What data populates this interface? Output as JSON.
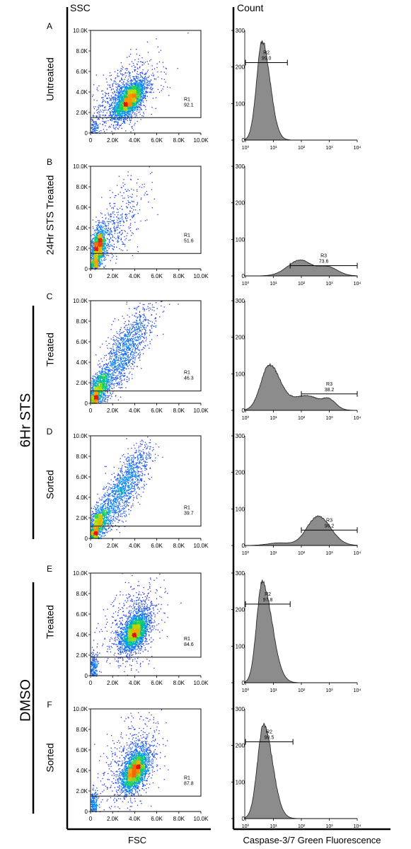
{
  "figure": {
    "y_header_left": "SSC",
    "y_header_right": "Count",
    "x_label_left": "FSC",
    "x_label_right": "Caspase-3/7 Green Fluorescence",
    "groups": [
      {
        "label": "6Hr STS",
        "rows": [
          2,
          3
        ]
      },
      {
        "label": "DMSO",
        "rows": [
          4,
          5
        ]
      }
    ]
  },
  "chart_data": [
    {
      "type": "scatter",
      "panel": "A",
      "row_label": "Untreated",
      "xlim": [
        0,
        10000
      ],
      "ylim": [
        0,
        10000
      ],
      "x_ticks": [
        "0",
        "2.0K",
        "4.0K",
        "6.0K",
        "8.0K",
        "10.0K"
      ],
      "y_ticks": [
        "0",
        "2.0K",
        "4.0K",
        "6.0K",
        "8.0K",
        "10.0K"
      ],
      "gate": {
        "name": "R1",
        "value": "92.1",
        "x_range": [
          0,
          10000
        ],
        "y_range": [
          1500,
          10000
        ]
      },
      "clusters": [
        {
          "cx": 3500,
          "cy": 3300,
          "sx": 700,
          "sy": 900,
          "rho": 0.6,
          "n": 2200
        },
        {
          "cx": 3000,
          "cy": 3500,
          "sx": 1600,
          "sy": 1700,
          "rho": 0.5,
          "n": 900
        },
        {
          "cx": 250,
          "cy": 400,
          "sx": 250,
          "sy": 500,
          "rho": 0.1,
          "n": 120
        }
      ]
    },
    {
      "type": "histogram",
      "panel": "A",
      "x_ticks": [
        "10⁰",
        "10¹",
        "10²",
        "10³",
        "10⁴"
      ],
      "ylim": [
        0,
        300
      ],
      "y_ticks": [
        "0",
        "100",
        "200",
        "300"
      ],
      "gate": {
        "name": "R2",
        "value": "99.0",
        "x_range": [
          0.0,
          1.5
        ],
        "y": 212
      },
      "peaks": [
        {
          "mu": 0.6,
          "sl": 0.2,
          "sr": 0.28,
          "h": 270
        }
      ]
    },
    {
      "type": "scatter",
      "panel": "B",
      "row_label": "24Hr STS Treated",
      "xlim": [
        0,
        10000
      ],
      "ylim": [
        0,
        10000
      ],
      "x_ticks": [
        "0",
        "2.0K",
        "4.0K",
        "6.0K",
        "8.0K",
        "10.0K"
      ],
      "y_ticks": [
        "0",
        "2.0K",
        "4.0K",
        "6.0K",
        "8.0K",
        "10.0K"
      ],
      "gate": {
        "name": "R1",
        "value": "51.6",
        "x_range": [
          0,
          10000
        ],
        "y_range": [
          1500,
          10000
        ]
      },
      "clusters": [
        {
          "cx": 700,
          "cy": 2300,
          "sx": 350,
          "sy": 900,
          "rho": 0.3,
          "n": 1100
        },
        {
          "cx": 2200,
          "cy": 4000,
          "sx": 1400,
          "sy": 2400,
          "rho": 0.7,
          "n": 500
        },
        {
          "cx": 300,
          "cy": 500,
          "sx": 250,
          "sy": 400,
          "rho": 0.1,
          "n": 300
        }
      ]
    },
    {
      "type": "histogram",
      "panel": "B",
      "x_ticks": [
        "10⁰",
        "10¹",
        "10²",
        "10³",
        "10⁴"
      ],
      "ylim": [
        0,
        300
      ],
      "y_ticks": [
        "0",
        "100",
        "200",
        "300"
      ],
      "gate": {
        "name": "R3",
        "value": "73.6",
        "x_range": [
          1.6,
          4.0
        ],
        "y": 28
      },
      "peaks": [
        {
          "mu": 1.95,
          "sl": 0.45,
          "sr": 0.35,
          "h": 42
        },
        {
          "mu": 2.9,
          "sl": 0.4,
          "sr": 0.38,
          "h": 26
        }
      ]
    },
    {
      "type": "scatter",
      "panel": "C",
      "group": "6Hr STS",
      "row_label": "Treated",
      "xlim": [
        0,
        10000
      ],
      "ylim": [
        0,
        10000
      ],
      "x_ticks": [
        "0",
        "2.0K",
        "4.0K",
        "6.0K",
        "8.0K",
        "10.0K"
      ],
      "y_ticks": [
        "0",
        "2.0K",
        "4.0K",
        "6.0K",
        "8.0K",
        "10.0K"
      ],
      "gate": {
        "name": "R1",
        "value": "46.3",
        "x_range": [
          0,
          10000
        ],
        "y_range": [
          1200,
          10000
        ]
      },
      "clusters": [
        {
          "cx": 700,
          "cy": 1500,
          "sx": 500,
          "sy": 900,
          "rho": 0.5,
          "n": 900
        },
        {
          "cx": 3000,
          "cy": 5000,
          "sx": 1300,
          "sy": 2300,
          "rho": 0.8,
          "n": 1300
        },
        {
          "cx": 250,
          "cy": 400,
          "sx": 200,
          "sy": 350,
          "rho": 0.1,
          "n": 250
        }
      ]
    },
    {
      "type": "histogram",
      "panel": "C",
      "x_ticks": [
        "10⁰",
        "10¹",
        "10²",
        "10³",
        "10⁴"
      ],
      "ylim": [
        0,
        300
      ],
      "y_ticks": [
        "0",
        "100",
        "200",
        "300"
      ],
      "gate": {
        "name": "R3",
        "value": "38.2",
        "x_range": [
          2.0,
          4.0
        ],
        "y": 45
      },
      "peaks": [
        {
          "mu": 0.85,
          "sl": 0.3,
          "sr": 0.38,
          "h": 122
        },
        {
          "mu": 2.2,
          "sl": 0.6,
          "sr": 0.5,
          "h": 40
        },
        {
          "mu": 3.0,
          "sl": 0.2,
          "sr": 0.25,
          "h": 22
        }
      ]
    },
    {
      "type": "scatter",
      "panel": "D",
      "group": "6Hr STS",
      "row_label": "Sorted",
      "xlim": [
        0,
        10000
      ],
      "ylim": [
        0,
        10000
      ],
      "x_ticks": [
        "0",
        "2.0K",
        "4.0K",
        "6.0K",
        "8.0K",
        "10.0K"
      ],
      "y_ticks": [
        "0",
        "2.0K",
        "4.0K",
        "6.0K",
        "8.0K",
        "10.0K"
      ],
      "gate": {
        "name": "R1",
        "value": "39.7",
        "x_range": [
          0,
          10000
        ],
        "y_range": [
          1200,
          10000
        ]
      },
      "clusters": [
        {
          "cx": 700,
          "cy": 1600,
          "sx": 500,
          "sy": 900,
          "rho": 0.5,
          "n": 900
        },
        {
          "cx": 2900,
          "cy": 4800,
          "sx": 1300,
          "sy": 2200,
          "rho": 0.8,
          "n": 1300
        },
        {
          "cx": 250,
          "cy": 400,
          "sx": 200,
          "sy": 350,
          "rho": 0.1,
          "n": 250
        }
      ]
    },
    {
      "type": "histogram",
      "panel": "D",
      "x_ticks": [
        "10⁰",
        "10¹",
        "10²",
        "10³",
        "10⁴"
      ],
      "ylim": [
        0,
        300
      ],
      "y_ticks": [
        "0",
        "100",
        "200",
        "300"
      ],
      "gate": {
        "name": "R3",
        "value": "90.2",
        "x_range": [
          2.0,
          4.0
        ],
        "y": 42
      },
      "peaks": [
        {
          "mu": 2.6,
          "sl": 0.4,
          "sr": 0.45,
          "h": 80
        },
        {
          "mu": 1.2,
          "sl": 0.4,
          "sr": 0.4,
          "h": 7
        }
      ]
    },
    {
      "type": "scatter",
      "panel": "E",
      "group": "DMSO",
      "row_label": "Treated",
      "xlim": [
        0,
        10000
      ],
      "ylim": [
        0,
        10000
      ],
      "x_ticks": [
        "0",
        "2.0K",
        "4.0K",
        "6.0K",
        "8.0K",
        "10.0K"
      ],
      "y_ticks": [
        "0",
        "2.0K",
        "4.0K",
        "6.0K",
        "8.0K",
        "10.0K"
      ],
      "gate": {
        "name": "R1",
        "value": "84.6",
        "x_range": [
          0,
          10000
        ],
        "y_range": [
          1800,
          10000
        ]
      },
      "clusters": [
        {
          "cx": 4000,
          "cy": 4300,
          "sx": 600,
          "sy": 900,
          "rho": 0.5,
          "n": 2200
        },
        {
          "cx": 3800,
          "cy": 4800,
          "sx": 1300,
          "sy": 2200,
          "rho": 0.4,
          "n": 700
        },
        {
          "cx": 250,
          "cy": 800,
          "sx": 200,
          "sy": 800,
          "rho": 0.1,
          "n": 250
        }
      ]
    },
    {
      "type": "histogram",
      "panel": "E",
      "x_ticks": [
        "10⁰",
        "10¹",
        "10²",
        "10³",
        "10⁴"
      ],
      "ylim": [
        0,
        300
      ],
      "y_ticks": [
        "0",
        "100",
        "200",
        "300"
      ],
      "gate": {
        "name": "R2",
        "value": "97.8",
        "x_range": [
          0.0,
          1.6
        ],
        "y": 215
      },
      "peaks": [
        {
          "mu": 0.6,
          "sl": 0.2,
          "sr": 0.35,
          "h": 275
        }
      ]
    },
    {
      "type": "scatter",
      "panel": "F",
      "group": "DMSO",
      "row_label": "Sorted",
      "xlim": [
        0,
        10000
      ],
      "ylim": [
        0,
        10000
      ],
      "x_ticks": [
        "0",
        "2.0K",
        "4.0K",
        "6.0K",
        "8.0K",
        "10.0K"
      ],
      "y_ticks": [
        "0",
        "2.0K",
        "4.0K",
        "6.0K",
        "8.0K",
        "10.0K"
      ],
      "gate": {
        "name": "R1",
        "value": "87.8",
        "x_range": [
          0,
          10000
        ],
        "y_range": [
          1500,
          10000
        ]
      },
      "clusters": [
        {
          "cx": 4000,
          "cy": 4000,
          "sx": 600,
          "sy": 1000,
          "rho": 0.5,
          "n": 2200
        },
        {
          "cx": 3700,
          "cy": 4700,
          "sx": 1300,
          "sy": 2200,
          "rho": 0.4,
          "n": 700
        },
        {
          "cx": 250,
          "cy": 700,
          "sx": 200,
          "sy": 700,
          "rho": 0.1,
          "n": 250
        }
      ]
    },
    {
      "type": "histogram",
      "panel": "F",
      "x_ticks": [
        "10⁰",
        "10¹",
        "10²",
        "10³",
        "10⁴"
      ],
      "ylim": [
        0,
        300
      ],
      "y_ticks": [
        "0",
        "100",
        "200",
        "300"
      ],
      "gate": {
        "name": "R2",
        "value": "99.5",
        "x_range": [
          0.0,
          1.7
        ],
        "y": 210
      },
      "peaks": [
        {
          "mu": 0.65,
          "sl": 0.22,
          "sr": 0.32,
          "h": 255
        }
      ]
    }
  ]
}
